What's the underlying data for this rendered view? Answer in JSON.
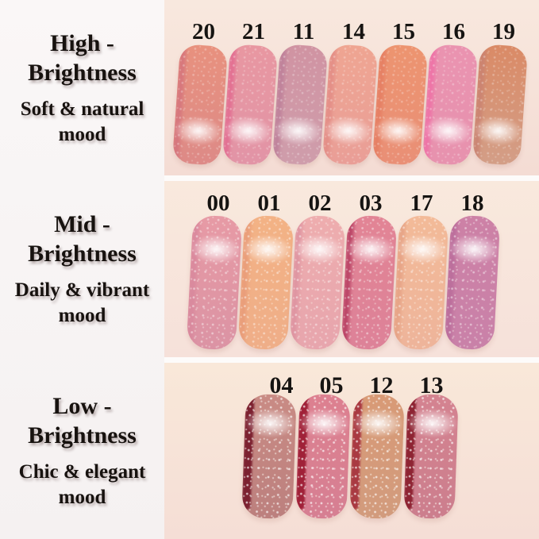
{
  "page_background": "#fdfbfa",
  "panel_background": "#f7f4f3",
  "text_color": "#17120f",
  "sections": [
    {
      "id": "high-brightness",
      "title_line1": "High -",
      "title_line2": "Brightness",
      "subtitle_line1": "Soft & natural",
      "subtitle_line2": "mood",
      "photo_bg_top": "#f8e8de",
      "photo_bg_bottom": "#f4dcd4",
      "swatches": [
        {
          "label": "20",
          "c1": "#e8917e",
          "c2": "#dd8a87",
          "edge": "#d4737c"
        },
        {
          "label": "21",
          "c1": "#e897a1",
          "c2": "#e294a6",
          "edge": "#e26990"
        },
        {
          "label": "11",
          "c1": "#d093a2",
          "c2": "#cf9dab",
          "edge": "#bd7f99"
        },
        {
          "label": "14",
          "c1": "#efa592",
          "c2": "#e99e97",
          "edge": "#e28b85"
        },
        {
          "label": "15",
          "c1": "#ed9470",
          "c2": "#e98f76",
          "edge": "#e57d62"
        },
        {
          "label": "16",
          "c1": "#ea93b0",
          "c2": "#e792ae",
          "edge": "#ef6fa6"
        },
        {
          "label": "19",
          "c1": "#da8a66",
          "c2": "#d39e87",
          "edge": "#c98272"
        }
      ]
    },
    {
      "id": "mid-brightness",
      "title_line1": "Mid -",
      "title_line2": "Brightness",
      "subtitle_line1": "Daily & vibrant",
      "subtitle_line2": "mood",
      "photo_bg_top": "#f9e9dd",
      "photo_bg_bottom": "#f6e1da",
      "swatches": [
        {
          "label": "00",
          "c1": "#e79aa5",
          "c2": "#db93a4",
          "edge": "#d8879c"
        },
        {
          "label": "01",
          "c1": "#f3b285",
          "c2": "#efae88",
          "edge": "#e89a78"
        },
        {
          "label": "02",
          "c1": "#eeadae",
          "c2": "#e7a5ad",
          "edge": "#dd92a0"
        },
        {
          "label": "03",
          "c1": "#e28495",
          "c2": "#dd8298",
          "edge": "#b43a5e"
        },
        {
          "label": "17",
          "c1": "#f3ba98",
          "c2": "#eeb49a",
          "edge": "#e5a184"
        },
        {
          "label": "18",
          "c1": "#cd81a6",
          "c2": "#c981a8",
          "edge": "#b96b9a"
        }
      ]
    },
    {
      "id": "low-brightness",
      "title_line1": "Low -",
      "title_line2": "Brightness",
      "subtitle_line1": "Chic & elegant",
      "subtitle_line2": "mood",
      "photo_bg_top": "#f9e8d9",
      "photo_bg_bottom": "#f5ded6",
      "swatches": [
        {
          "label": "04",
          "c1": "#c98b84",
          "c2": "#bc807e",
          "edge": "#7c2130"
        },
        {
          "label": "05",
          "c1": "#dd8090",
          "c2": "#d67f92",
          "edge": "#a02138"
        },
        {
          "label": "12",
          "c1": "#d89a76",
          "c2": "#d29b7d",
          "edge": "#a93a42"
        },
        {
          "label": "13",
          "c1": "#d48390",
          "c2": "#cc7e8d",
          "edge": "#8e2433"
        }
      ]
    }
  ]
}
